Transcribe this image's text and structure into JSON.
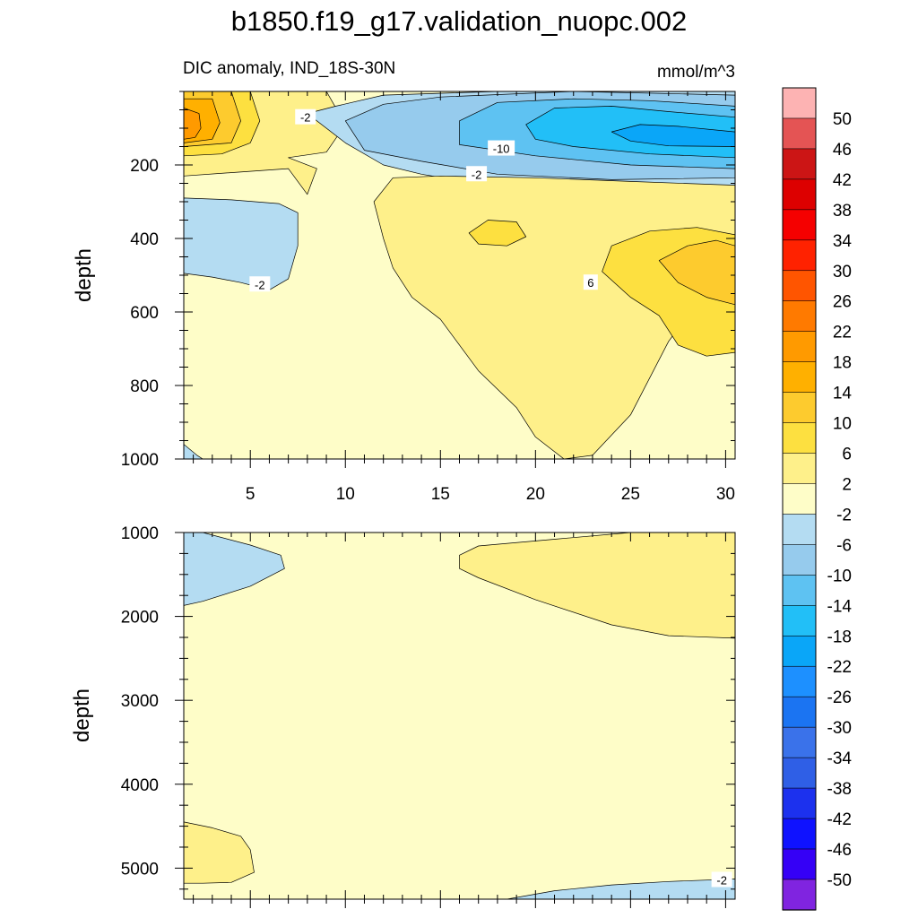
{
  "figure": {
    "title": "b1850.f19_g17.validation_nuopc.002",
    "subtitle_left": "DIC anomaly, IND_18S-30N",
    "subtitle_right": "mmol/m^3"
  },
  "chart_data": [
    {
      "type": "heatmap",
      "panel": "upper",
      "title": "DIC anomaly, IND_18S-30N",
      "units": "mmol/m^3",
      "xlabel": "",
      "ylabel": "depth",
      "xlim": [
        1.5,
        30.5
      ],
      "ylim": [
        1000,
        0
      ],
      "xticks": [
        5,
        10,
        15,
        20,
        25,
        30
      ],
      "xtick_labels": [
        "5",
        "10",
        "15",
        "20",
        "25",
        "30"
      ],
      "yticks": [
        200,
        400,
        600,
        800,
        1000
      ],
      "ytick_labels": [
        "200",
        "400",
        "600",
        "800",
        "1000"
      ],
      "contour_labels": [
        {
          "text": "-2",
          "x": 7.9,
          "y": 70
        },
        {
          "text": "-10",
          "x": 18.2,
          "y": 155
        },
        {
          "text": "-2",
          "x": 16.9,
          "y": 225
        },
        {
          "text": "-2",
          "x": 5.5,
          "y": 525
        },
        {
          "text": "6",
          "x": 22.9,
          "y": 520
        }
      ],
      "regions": [
        {
          "name": "near-zero background",
          "level": "2",
          "points": [
            [
              1.5,
              0
            ],
            [
              30.5,
              0
            ],
            [
              30.5,
              1000
            ],
            [
              1.5,
              1000
            ]
          ]
        },
        {
          "name": "upper-ocean positive band",
          "level": "6",
          "points": [
            [
              1.5,
              0
            ],
            [
              9,
              0
            ],
            [
              10,
              90
            ],
            [
              9,
              165
            ],
            [
              7,
              180
            ],
            [
              8.5,
              210
            ],
            [
              8,
              280
            ],
            [
              7,
              210
            ],
            [
              1.5,
              230
            ]
          ]
        },
        {
          "name": "western surface maximum",
          "level": "10",
          "points": [
            [
              1.5,
              0
            ],
            [
              5,
              0
            ],
            [
              5.5,
              80
            ],
            [
              5,
              140
            ],
            [
              3.5,
              170
            ],
            [
              1.5,
              175
            ]
          ]
        },
        {
          "name": "western surface maximum core 1",
          "level": "14",
          "points": [
            [
              1.5,
              0
            ],
            [
              4,
              0
            ],
            [
              4.5,
              80
            ],
            [
              4,
              140
            ],
            [
              1.5,
              150
            ]
          ]
        },
        {
          "name": "western surface maximum core 2",
          "level": "18",
          "points": [
            [
              1.5,
              20
            ],
            [
              3,
              20
            ],
            [
              3.4,
              85
            ],
            [
              3,
              130
            ],
            [
              1.5,
              140
            ]
          ]
        },
        {
          "name": "western surface maximum core 3",
          "level": "22",
          "points": [
            [
              1.5,
              45
            ],
            [
              2.3,
              60
            ],
            [
              2.4,
              100
            ],
            [
              2.1,
              125
            ],
            [
              1.5,
              130
            ]
          ]
        },
        {
          "name": "upper-ocean negative band",
          "level": "-2",
          "points": [
            [
              8,
              60
            ],
            [
              9.5,
              40
            ],
            [
              12,
              10
            ],
            [
              18,
              0
            ],
            [
              30.5,
              0
            ],
            [
              30.5,
              270
            ],
            [
              24,
              280
            ],
            [
              18,
              260
            ],
            [
              14,
              225
            ],
            [
              12,
              200
            ],
            [
              10,
              140
            ]
          ]
        },
        {
          "name": "negative band inner",
          "level": "-6",
          "points": [
            [
              10,
              80
            ],
            [
              12,
              35
            ],
            [
              15,
              15
            ],
            [
              22,
              0
            ],
            [
              30.5,
              10
            ],
            [
              30.5,
              235
            ],
            [
              24,
              240
            ],
            [
              18,
              225
            ],
            [
              14,
              190
            ],
            [
              11,
              160
            ]
          ]
        },
        {
          "name": "negative band core",
          "level": "-10",
          "points": [
            [
              16,
              80
            ],
            [
              18,
              30
            ],
            [
              22,
              20
            ],
            [
              26,
              25
            ],
            [
              30.5,
              40
            ],
            [
              30.5,
              210
            ],
            [
              25,
              200
            ],
            [
              20,
              175
            ],
            [
              16,
              145
            ]
          ]
        },
        {
          "name": "negative band deep core",
          "level": "-14",
          "points": [
            [
              19.5,
              90
            ],
            [
              21,
              45
            ],
            [
              24,
              40
            ],
            [
              27,
              55
            ],
            [
              30.5,
              70
            ],
            [
              30.5,
              180
            ],
            [
              26,
              170
            ],
            [
              22,
              150
            ],
            [
              20,
              130
            ]
          ]
        },
        {
          "name": "negative band strongest core",
          "level": "-18",
          "points": [
            [
              24,
              110
            ],
            [
              25.5,
              90
            ],
            [
              27.5,
              95
            ],
            [
              30.5,
              110
            ],
            [
              30.5,
              150
            ],
            [
              27,
              148
            ],
            [
              25,
              135
            ]
          ]
        },
        {
          "name": "western mid-depth negative patch",
          "level": "-2",
          "points": [
            [
              1.5,
              290
            ],
            [
              4,
              295
            ],
            [
              6.5,
              305
            ],
            [
              7.5,
              330
            ],
            [
              7.5,
              420
            ],
            [
              7,
              510
            ],
            [
              6,
              540
            ],
            [
              4.5,
              520
            ],
            [
              3,
              505
            ],
            [
              1.5,
              495
            ]
          ]
        },
        {
          "name": "mid-depth positive tongue",
          "level": "6",
          "points": [
            [
              11.5,
              300
            ],
            [
              12.5,
              235
            ],
            [
              15,
              230
            ],
            [
              20,
              235
            ],
            [
              25,
              245
            ],
            [
              30.5,
              255
            ],
            [
              30.5,
              520
            ],
            [
              29,
              540
            ],
            [
              27,
              680
            ],
            [
              25,
              880
            ],
            [
              23,
              990
            ],
            [
              21.5,
              1000
            ],
            [
              20,
              940
            ],
            [
              19,
              860
            ],
            [
              17,
              760
            ],
            [
              15,
              620
            ],
            [
              13.5,
              560
            ],
            [
              12.5,
              480
            ],
            [
              12,
              400
            ]
          ]
        },
        {
          "name": "eastern mid-depth maximum",
          "level": "10",
          "points": [
            [
              24,
              420
            ],
            [
              26,
              380
            ],
            [
              28.5,
              370
            ],
            [
              30.5,
              390
            ],
            [
              30.5,
              710
            ],
            [
              29,
              720
            ],
            [
              27.5,
              690
            ],
            [
              26.5,
              610
            ],
            [
              25,
              560
            ],
            [
              23.5,
              490
            ]
          ]
        },
        {
          "name": "eastern mid-depth maximum core",
          "level": "14",
          "points": [
            [
              26.5,
              460
            ],
            [
              28,
              420
            ],
            [
              29.5,
              405
            ],
            [
              30.5,
              420
            ],
            [
              30.5,
              580
            ],
            [
              29,
              560
            ],
            [
              27.5,
              520
            ]
          ]
        },
        {
          "name": "small positive patch",
          "level": "10",
          "points": [
            [
              16.5,
              385
            ],
            [
              17.5,
              350
            ],
            [
              19,
              355
            ],
            [
              19.5,
              395
            ],
            [
              18.5,
              420
            ],
            [
              17,
              415
            ]
          ]
        },
        {
          "name": "bottom-left negative corner",
          "level": "-2",
          "points": [
            [
              1.5,
              960
            ],
            [
              2.2,
              990
            ],
            [
              2.5,
              1000
            ],
            [
              1.5,
              1000
            ]
          ]
        }
      ]
    },
    {
      "type": "heatmap",
      "panel": "lower",
      "title": "",
      "units": "mmol/m^3",
      "xlabel": "",
      "ylabel": "depth",
      "xlim": [
        1.5,
        30.5
      ],
      "ylim": [
        5370,
        1000
      ],
      "yticks": [
        1000,
        2000,
        3000,
        4000,
        5000
      ],
      "ytick_labels": [
        "1000",
        "2000",
        "3000",
        "4000",
        "5000"
      ],
      "contour_labels": [
        {
          "text": "-2",
          "x": 29.8,
          "y": 5140
        }
      ],
      "regions": [
        {
          "name": "near-zero background",
          "level": "2",
          "points": [
            [
              1.5,
              1000
            ],
            [
              30.5,
              1000
            ],
            [
              30.5,
              5370
            ],
            [
              1.5,
              5370
            ]
          ]
        },
        {
          "name": "upper-left negative patch",
          "level": "-2",
          "points": [
            [
              1.5,
              1000
            ],
            [
              2.5,
              1000
            ],
            [
              5,
              1150
            ],
            [
              6.6,
              1270
            ],
            [
              6.8,
              1430
            ],
            [
              5,
              1640
            ],
            [
              2.5,
              1820
            ],
            [
              1.5,
              1870
            ]
          ]
        },
        {
          "name": "upper-right positive wedge",
          "level": "6",
          "points": [
            [
              16,
              1270
            ],
            [
              17,
              1160
            ],
            [
              21,
              1080
            ],
            [
              25,
              1000
            ],
            [
              30.5,
              1000
            ],
            [
              30.5,
              2260
            ],
            [
              27,
              2230
            ],
            [
              24,
              2100
            ],
            [
              20,
              1800
            ],
            [
              17,
              1540
            ],
            [
              16,
              1430
            ]
          ]
        },
        {
          "name": "bottom-left positive patch",
          "level": "6",
          "points": [
            [
              1.5,
              4450
            ],
            [
              3,
              4520
            ],
            [
              4.5,
              4620
            ],
            [
              5,
              4780
            ],
            [
              5.2,
              5050
            ],
            [
              4,
              5170
            ],
            [
              2.5,
              5180
            ],
            [
              1.5,
              5180
            ]
          ]
        },
        {
          "name": "bottom-right negative patch",
          "level": "-2",
          "points": [
            [
              18.5,
              5370
            ],
            [
              21,
              5270
            ],
            [
              24,
              5200
            ],
            [
              27,
              5160
            ],
            [
              30.5,
              5130
            ],
            [
              30.5,
              5370
            ]
          ]
        }
      ]
    },
    {
      "type": "colorbar",
      "levels": [
        "50",
        "46",
        "42",
        "38",
        "34",
        "30",
        "26",
        "22",
        "18",
        "14",
        "10",
        "6",
        "2",
        "-2",
        "-6",
        "-10",
        "-14",
        "-18",
        "-22",
        "-26",
        "-30",
        "-34",
        "-38",
        "-42",
        "-46",
        "-50"
      ],
      "colors": [
        "#fdb3b3",
        "#e45454",
        "#cc1515",
        "#dd0000",
        "#f50000",
        "#ff2200",
        "#ff5500",
        "#ff7a00",
        "#ff9a00",
        "#ffb000",
        "#fdcb2e",
        "#fde040",
        "#fef08a",
        "#fefdc8",
        "#b4dcf2",
        "#96cbed",
        "#5ec2f2",
        "#22bff7",
        "#0aa6f8",
        "#1d90ff",
        "#1b74f2",
        "#3a72ea",
        "#2f5fe6",
        "#1c31ee",
        "#0f12ff",
        "#3500f6",
        "#8024e0"
      ],
      "color_keys": [
        "above",
        "50",
        "46",
        "42",
        "38",
        "34",
        "30",
        "26",
        "22",
        "18",
        "14",
        "10",
        "6",
        "2",
        "-2",
        "-6",
        "-10",
        "-14",
        "-18",
        "-22",
        "-26",
        "-30",
        "-34",
        "-38",
        "-42",
        "-46",
        "below"
      ]
    }
  ]
}
